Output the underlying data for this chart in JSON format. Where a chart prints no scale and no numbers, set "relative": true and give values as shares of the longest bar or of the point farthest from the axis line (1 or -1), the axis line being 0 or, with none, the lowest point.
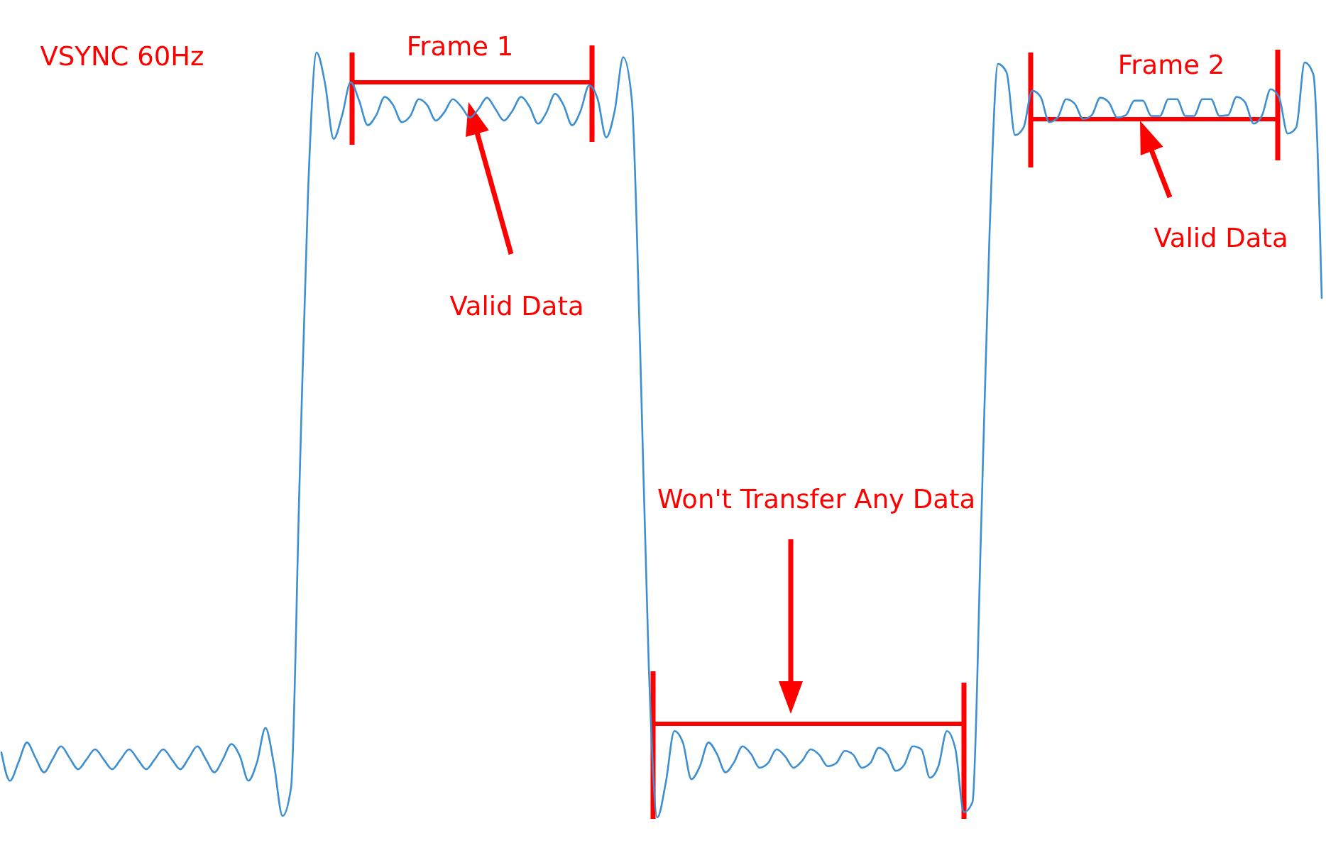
{
  "chart_data": {
    "type": "line",
    "relative": true,
    "tick_labels": false,
    "categories": [
      null,
      null,
      null,
      null,
      null,
      null,
      null,
      null,
      null,
      null,
      null,
      null,
      null,
      null,
      null,
      null,
      null,
      null,
      null,
      null,
      null,
      null,
      null,
      null,
      null,
      null,
      null,
      null,
      null,
      null,
      null,
      null,
      null,
      null,
      null,
      null,
      null,
      null,
      null,
      null,
      null,
      null,
      null,
      null,
      null,
      null,
      null,
      null,
      null,
      null,
      null,
      null,
      null,
      null,
      null,
      null,
      null,
      null,
      null,
      null,
      null,
      null,
      null,
      null,
      null,
      null,
      null,
      null,
      null,
      null,
      null,
      null,
      null,
      null,
      null,
      null,
      null,
      null,
      null,
      null,
      null,
      null,
      null,
      null,
      null,
      null,
      null,
      null,
      null,
      null,
      null,
      null,
      null,
      null,
      null,
      null,
      null,
      null,
      null,
      null,
      null,
      null,
      null,
      null,
      null,
      null,
      null,
      null,
      null,
      null,
      null,
      null,
      null,
      null,
      null,
      null,
      null,
      null,
      null,
      null,
      null,
      null,
      null,
      null,
      null,
      null,
      null,
      null,
      null,
      null,
      null,
      null,
      null,
      null,
      null,
      null,
      null,
      null,
      null,
      null,
      null,
      null,
      null,
      null,
      null,
      null,
      null,
      null,
      null,
      null,
      null,
      null,
      null,
      null,
      null,
      null
    ],
    "series": [
      {
        "color": "#3d8fd1",
        "values": [
          0.085,
          0.048,
          0.072,
          0.098,
          0.078,
          0.059,
          0.076,
          0.093,
          0.078,
          0.063,
          0.076,
          0.089,
          0.076,
          0.063,
          0.076,
          0.089,
          0.076,
          0.063,
          0.076,
          0.089,
          0.076,
          0.063,
          0.078,
          0.093,
          0.076,
          0.059,
          0.076,
          0.096,
          0.08,
          0.048,
          0.072,
          0.117,
          0.069,
          0.002,
          0.039,
          0.438,
          0.818,
          1,
          0.959,
          0.887,
          0.918,
          0.961,
          0.937,
          0.905,
          0.918,
          0.942,
          0.931,
          0.909,
          0.917,
          0.939,
          0.931,
          0.911,
          0.922,
          0.939,
          0.929,
          0.915,
          0.926,
          0.941,
          0.926,
          0.911,
          0.924,
          0.942,
          0.929,
          0.907,
          0.922,
          0.946,
          0.931,
          0.905,
          0.924,
          0.957,
          0.939,
          0.889,
          0.924,
          0.994,
          0.939,
          0.605,
          0.197,
          0,
          0.046,
          0.113,
          0.098,
          0.05,
          0.067,
          0.098,
          0.083,
          0.059,
          0.072,
          0.093,
          0.083,
          0.065,
          0.071,
          0.089,
          0.08,
          0.065,
          0.074,
          0.089,
          0.082,
          0.067,
          0.071,
          0.087,
          0.082,
          0.065,
          0.071,
          0.091,
          0.083,
          0.061,
          0.069,
          0.093,
          0.089,
          0.052,
          0.067,
          0.113,
          0.089,
          0.007,
          0.02,
          0.373,
          0.763,
          0.985,
          0.974,
          0.892,
          0.902,
          0.95,
          0.942,
          0.909,
          0.915,
          0.939,
          0.933,
          0.913,
          0.918,
          0.941,
          0.935,
          0.915,
          0.918,
          0.937,
          0.937,
          0.917,
          0.917,
          0.939,
          0.939,
          0.917,
          0.917,
          0.939,
          0.939,
          0.917,
          0.918,
          0.942,
          0.935,
          0.907,
          0.918,
          0.952,
          0.941,
          0.894,
          0.902,
          0.987,
          0.972,
          0.679
        ]
      }
    ],
    "annotations": [
      "VSYNC 60Hz",
      "Frame 1",
      "Valid Data",
      "Won't Transfer Any Data",
      "Frame 2",
      "Valid Data"
    ]
  }
}
